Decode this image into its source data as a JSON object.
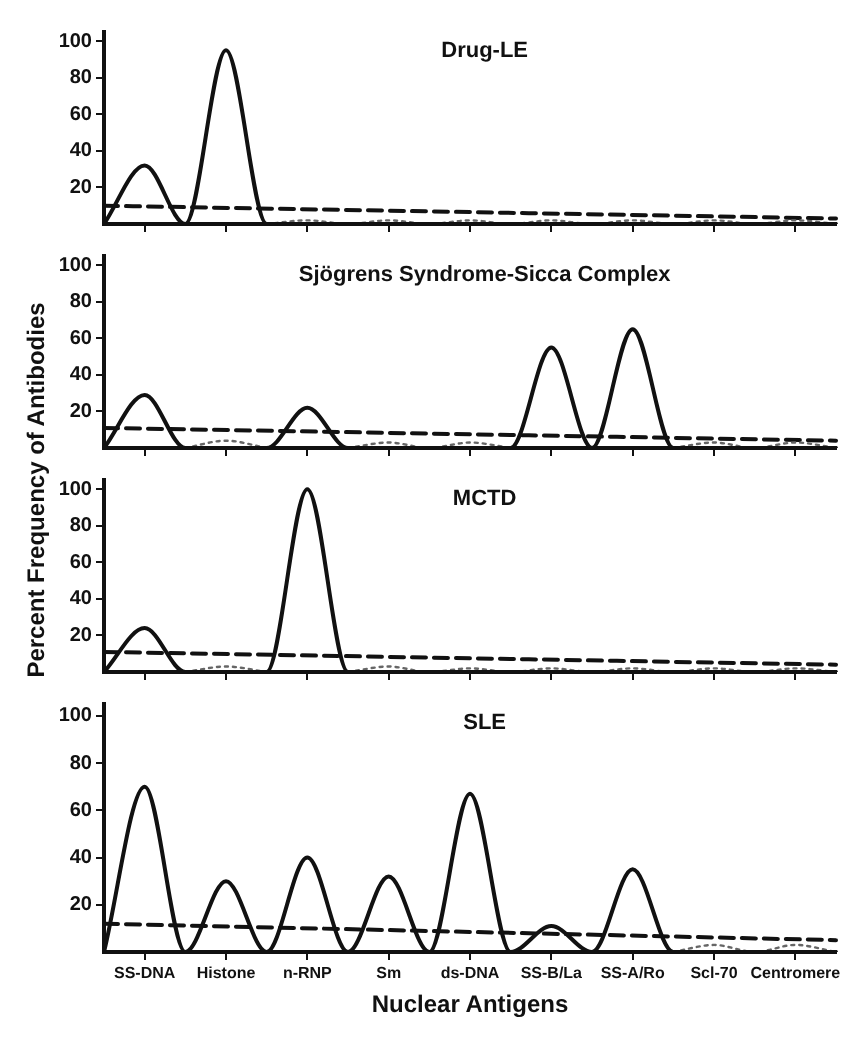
{
  "chart_data": [
    {
      "type": "line",
      "title": "Drug-LE",
      "categories": [
        null,
        null,
        null,
        null,
        null,
        null,
        null,
        null,
        null,
        null,
        null,
        null,
        null,
        null,
        null,
        null,
        null,
        null,
        null
      ],
      "ylim": [
        0,
        105
      ],
      "yticks": [
        20,
        40,
        60,
        80,
        100
      ],
      "tick_labels": "y",
      "legend": false,
      "grid": false,
      "series": [
        {
          "color": "#111111",
          "line_style": "solid",
          "values": [
            0,
            32,
            0,
            95,
            0,
            0,
            0,
            0,
            0,
            0,
            0,
            0,
            0,
            0,
            0,
            0,
            0,
            0,
            0
          ]
        },
        {
          "color": "#666666",
          "line_style": "dotted",
          "values": [
            null,
            null,
            null,
            null,
            0,
            2,
            0,
            2,
            0,
            2,
            0,
            2,
            0,
            2,
            0,
            2,
            0,
            2,
            0
          ]
        },
        {
          "color": "#111111",
          "line_style": "dashed",
          "values": [
            10,
            null,
            null,
            null,
            null,
            null,
            null,
            null,
            null,
            null,
            null,
            null,
            null,
            null,
            null,
            null,
            null,
            null,
            3
          ]
        }
      ]
    },
    {
      "type": "line",
      "title": "Sjögrens Syndrome-Sicca Complex",
      "ylabel": "Percent Frequency of Antibodies",
      "categories": [
        null,
        null,
        null,
        null,
        null,
        null,
        null,
        null,
        null,
        null,
        null,
        null,
        null,
        null,
        null,
        null,
        null,
        null,
        null
      ],
      "ylim": [
        0,
        105
      ],
      "yticks": [
        20,
        40,
        60,
        80,
        100
      ],
      "tick_labels": "y",
      "legend": false,
      "grid": false,
      "series": [
        {
          "color": "#111111",
          "line_style": "solid",
          "values": [
            0,
            29,
            0,
            0,
            0,
            22,
            0,
            0,
            0,
            0,
            0,
            55,
            0,
            65,
            0,
            0,
            0,
            0,
            0
          ]
        },
        {
          "color": "#666666",
          "line_style": "dotted",
          "values": [
            null,
            null,
            0,
            4,
            0,
            null,
            0,
            3,
            0,
            3,
            0,
            null,
            null,
            null,
            0,
            3,
            0,
            3,
            0
          ]
        },
        {
          "color": "#111111",
          "line_style": "dashed",
          "values": [
            11,
            null,
            null,
            null,
            null,
            null,
            null,
            null,
            null,
            null,
            null,
            null,
            null,
            null,
            null,
            null,
            null,
            null,
            4
          ]
        }
      ]
    },
    {
      "type": "line",
      "title": "MCTD",
      "categories": [
        null,
        null,
        null,
        null,
        null,
        null,
        null,
        null,
        null,
        null,
        null,
        null,
        null,
        null,
        null,
        null,
        null,
        null,
        null
      ],
      "ylim": [
        0,
        105
      ],
      "yticks": [
        20,
        40,
        60,
        80,
        100
      ],
      "tick_labels": "y",
      "legend": false,
      "grid": false,
      "series": [
        {
          "color": "#111111",
          "line_style": "solid",
          "values": [
            0,
            24,
            0,
            0,
            0,
            100,
            0,
            0,
            0,
            0,
            0,
            0,
            0,
            0,
            0,
            0,
            0,
            0,
            0
          ]
        },
        {
          "color": "#666666",
          "line_style": "dotted",
          "values": [
            null,
            null,
            0,
            3,
            0,
            null,
            0,
            3,
            0,
            2,
            0,
            2,
            0,
            2,
            0,
            2,
            0,
            2,
            0
          ]
        },
        {
          "color": "#111111",
          "line_style": "dashed",
          "values": [
            11,
            null,
            null,
            null,
            null,
            null,
            null,
            null,
            null,
            null,
            null,
            null,
            null,
            null,
            null,
            null,
            null,
            null,
            4
          ]
        }
      ]
    },
    {
      "type": "line",
      "title": "SLE",
      "xlabel": "Nuclear Antigens",
      "categories": [
        null,
        "SS-DNA",
        null,
        "Histone",
        null,
        "n-RNP",
        null,
        "Sm",
        null,
        "ds-DNA",
        null,
        "SS-B/La",
        null,
        "SS-A/Ro",
        null,
        "Scl-70",
        null,
        "Centromere",
        null
      ],
      "ylim": [
        0,
        105
      ],
      "yticks": [
        20,
        40,
        60,
        80,
        100
      ],
      "legend": false,
      "grid": false,
      "series": [
        {
          "color": "#111111",
          "line_style": "solid",
          "values": [
            0,
            70,
            0,
            30,
            0,
            40,
            0,
            32,
            0,
            67,
            0,
            11,
            0,
            35,
            0,
            0,
            0,
            0,
            0
          ]
        },
        {
          "color": "#666666",
          "line_style": "dotted",
          "values": [
            null,
            null,
            null,
            null,
            null,
            null,
            null,
            null,
            null,
            null,
            null,
            null,
            null,
            null,
            0,
            3,
            0,
            3,
            0
          ]
        },
        {
          "color": "#111111",
          "line_style": "dashed",
          "values": [
            12,
            null,
            null,
            null,
            null,
            null,
            null,
            null,
            null,
            null,
            null,
            null,
            null,
            null,
            null,
            null,
            null,
            null,
            5
          ]
        }
      ]
    }
  ]
}
